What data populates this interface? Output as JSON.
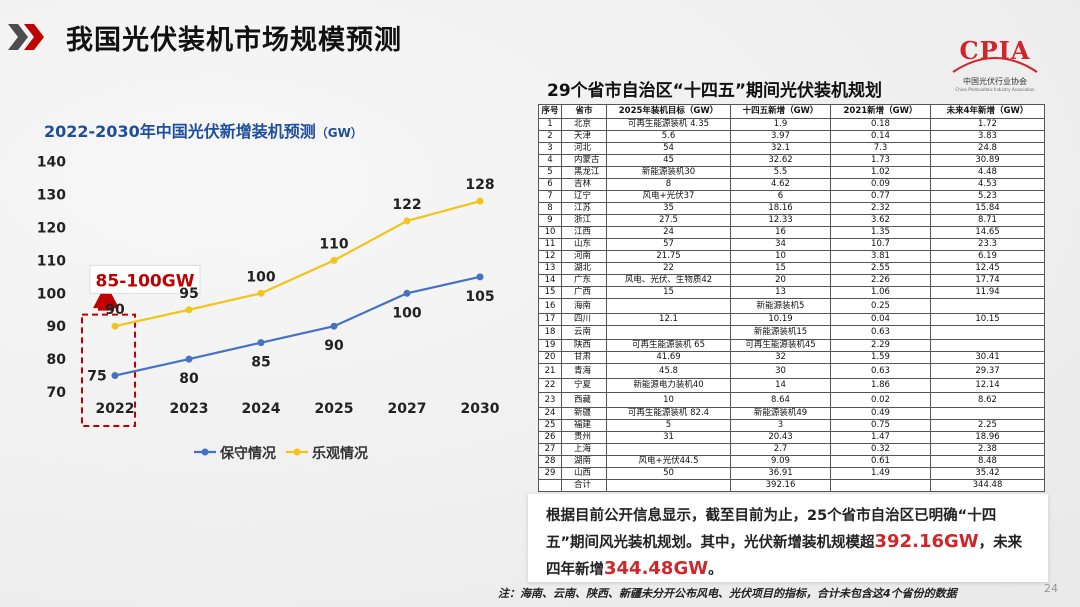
{
  "page": {
    "title": "我国光伏装机市场规模预测",
    "page_number": "24",
    "logo": {
      "mark": "CPIA",
      "name": "中国光伏行业协会",
      "english": "China Photovoltaic Industry Association"
    }
  },
  "chart": {
    "title": "2022-2030年中国光伏新增装机预测",
    "title_unit": "（GW）",
    "callout": "85-100GW",
    "colors": {
      "conservative": "#4472c4",
      "optimistic": "#f4c419",
      "callout": "#c00000"
    }
  },
  "chart_data": {
    "type": "line",
    "title": "2022-2030年中国光伏新增装机预测（GW）",
    "categories": [
      "2022",
      "2023",
      "2024",
      "2025",
      "2027",
      "2030"
    ],
    "series": [
      {
        "name": "保守情况",
        "values": [
          75,
          80,
          85,
          90,
          100,
          105
        ]
      },
      {
        "name": "乐观情况",
        "values": [
          90,
          95,
          100,
          110,
          122,
          128
        ]
      }
    ],
    "yticks": [
      70,
      80,
      90,
      100,
      110,
      120,
      130,
      140
    ],
    "ylim": [
      70,
      140
    ],
    "grid": false,
    "legend": "bottom",
    "data_labels": true
  },
  "table": {
    "title": "29个省市自治区“十四五”期间光伏装机规划",
    "headers": [
      "序号",
      "省市",
      "2025年装机目标（GW）",
      "十四五新增（GW）",
      "2021新增（GW）",
      "未来4年新增（GW）"
    ],
    "rows": [
      [
        "1",
        "北京",
        "可再生能源装机 4.35",
        "1.9",
        "0.18",
        "1.72"
      ],
      [
        "2",
        "天津",
        "5.6",
        "3.97",
        "0.14",
        "3.83"
      ],
      [
        "3",
        "河北",
        "54",
        "32.1",
        "7.3",
        "24.8"
      ],
      [
        "4",
        "内蒙古",
        "45",
        "32.62",
        "1.73",
        "30.89"
      ],
      [
        "5",
        "黑龙江",
        "新能源装机30",
        "5.5",
        "1.02",
        "4.48"
      ],
      [
        "6",
        "吉林",
        "8",
        "4.62",
        "0.09",
        "4.53"
      ],
      [
        "7",
        "辽宁",
        "风电+光伏37",
        "6",
        "0.77",
        "5.23"
      ],
      [
        "8",
        "江苏",
        "35",
        "18.16",
        "2.32",
        "15.84"
      ],
      [
        "9",
        "浙江",
        "27.5",
        "12.33",
        "3.62",
        "8.71"
      ],
      [
        "10",
        "江西",
        "24",
        "16",
        "1.35",
        "14.65"
      ],
      [
        "11",
        "山东",
        "57",
        "34",
        "10.7",
        "23.3"
      ],
      [
        "12",
        "河南",
        "21.75",
        "10",
        "3.81",
        "6.19"
      ],
      [
        "13",
        "湖北",
        "22",
        "15",
        "2.55",
        "12.45"
      ],
      [
        "14",
        "广东",
        "风电、光伏、生物质42",
        "20",
        "2.26",
        "17.74"
      ],
      [
        "15",
        "广西",
        "15",
        "13",
        "1.06",
        "11.94"
      ],
      [
        "16",
        "海南",
        "",
        "新能源装机5",
        "0.25",
        ""
      ],
      [
        "17",
        "四川",
        "12.1",
        "10.19",
        "0.04",
        "10.15"
      ],
      [
        "18",
        "云南",
        "",
        "新能源装机15",
        "0.63",
        ""
      ],
      [
        "19",
        "陕西",
        "可再生能源装机 65",
        "可再生能源装机45",
        "2.29",
        ""
      ],
      [
        "20",
        "甘肃",
        "41.69",
        "32",
        "1.59",
        "30.41"
      ],
      [
        "21",
        "青海",
        "45.8",
        "30",
        "0.63",
        "29.37"
      ],
      [
        "22",
        "宁夏",
        "新能源电力装机40",
        "14",
        "1.86",
        "12.14"
      ],
      [
        "23",
        "西藏",
        "10",
        "8.64",
        "0.02",
        "8.62"
      ],
      [
        "24",
        "新疆",
        "可再生能源装机 82.4",
        "新能源装机49",
        "0.49",
        ""
      ],
      [
        "25",
        "福建",
        "5",
        "3",
        "0.75",
        "2.25"
      ],
      [
        "26",
        "贵州",
        "31",
        "20.43",
        "1.47",
        "18.96"
      ],
      [
        "27",
        "上海",
        "",
        "2.7",
        "0.32",
        "2.38"
      ],
      [
        "28",
        "湖南",
        "风电+光伏44.5",
        "9.09",
        "0.61",
        "8.48"
      ],
      [
        "29",
        "山西",
        "50",
        "36.91",
        "1.49",
        "35.42"
      ],
      [
        "",
        "合计",
        "",
        "392.16",
        "",
        "344.48"
      ]
    ]
  },
  "summary": {
    "text_1": "根据目前公开信息显示，截至目前为止，25个省市自治区已明确“十四五”期间风光装机规划。其中，光伏新增装机规模超",
    "highlight_1": "392.16GW",
    "text_2": "，未来四年新增",
    "highlight_2": "344.48GW",
    "text_3": "。"
  },
  "note": "注：海南、云南、陕西、新疆未分开公布风电、光伏项目的指标，合计未包含这4个省份的数据"
}
